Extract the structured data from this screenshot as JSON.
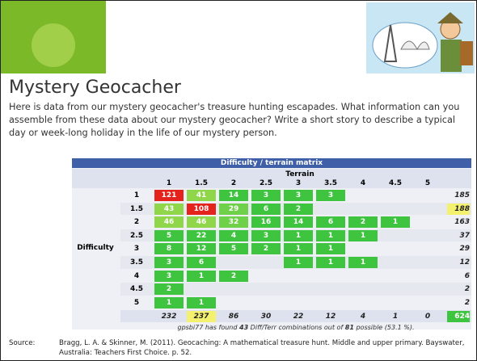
{
  "header": {
    "title": "Mystery Geocacher",
    "text": "Here is data from our mystery geocacher's treasure hunting escapades. What information can you assemble from these data about our mystery geocacher? Write a short story to describe a typical day or week-long holiday in the life of our mystery person."
  },
  "matrix": {
    "title": "Difficulty / terrain matrix",
    "terrain_label": "Terrain",
    "difficulty_label": "Difficulty",
    "terrain": [
      "1",
      "1.5",
      "2",
      "2.5",
      "3",
      "3.5",
      "4",
      "4.5",
      "5"
    ],
    "rows": [
      {
        "difficulty": "1",
        "values": [
          121,
          41,
          14,
          3,
          3,
          3,
          null,
          null,
          null
        ],
        "colors": [
          "#e3231c",
          "#8fd64a",
          "#3fc43f",
          "#3fc43f",
          "#3fc43f",
          "#3fc43f",
          null,
          null,
          null
        ],
        "total": 185,
        "total_color": null
      },
      {
        "difficulty": "1.5",
        "values": [
          43,
          108,
          29,
          6,
          2,
          null,
          null,
          null,
          null
        ],
        "colors": [
          "#8fd64a",
          "#e3231c",
          "#6fd04a",
          "#3fc43f",
          "#3fc43f",
          null,
          null,
          null,
          null
        ],
        "total": 188,
        "total_color": "#f4f070"
      },
      {
        "difficulty": "2",
        "values": [
          46,
          46,
          32,
          16,
          14,
          6,
          2,
          1,
          null
        ],
        "colors": [
          "#8fd64a",
          "#8fd64a",
          "#6fd04a",
          "#3fc43f",
          "#3fc43f",
          "#3fc43f",
          "#3fc43f",
          "#3fc43f",
          null
        ],
        "total": 163,
        "total_color": null
      },
      {
        "difficulty": "2.5",
        "values": [
          5,
          22,
          4,
          3,
          1,
          1,
          1,
          null,
          null
        ],
        "colors": [
          "#3fc43f",
          "#3fc43f",
          "#3fc43f",
          "#3fc43f",
          "#3fc43f",
          "#3fc43f",
          "#3fc43f",
          null,
          null
        ],
        "total": 37,
        "total_color": null
      },
      {
        "difficulty": "3",
        "values": [
          8,
          12,
          5,
          2,
          1,
          1,
          null,
          null,
          null
        ],
        "colors": [
          "#3fc43f",
          "#3fc43f",
          "#3fc43f",
          "#3fc43f",
          "#3fc43f",
          "#3fc43f",
          null,
          null,
          null
        ],
        "total": 29,
        "total_color": null
      },
      {
        "difficulty": "3.5",
        "values": [
          3,
          6,
          null,
          null,
          1,
          1,
          1,
          null,
          null
        ],
        "colors": [
          "#3fc43f",
          "#3fc43f",
          null,
          null,
          "#3fc43f",
          "#3fc43f",
          "#3fc43f",
          null,
          null
        ],
        "total": 12,
        "total_color": null
      },
      {
        "difficulty": "4",
        "values": [
          3,
          1,
          2,
          null,
          null,
          null,
          null,
          null,
          null
        ],
        "colors": [
          "#3fc43f",
          "#3fc43f",
          "#3fc43f",
          null,
          null,
          null,
          null,
          null,
          null
        ],
        "total": 6,
        "total_color": null
      },
      {
        "difficulty": "4.5",
        "values": [
          2,
          null,
          null,
          null,
          null,
          null,
          null,
          null,
          null
        ],
        "colors": [
          "#3fc43f",
          null,
          null,
          null,
          null,
          null,
          null,
          null,
          null
        ],
        "total": 2,
        "total_color": null
      },
      {
        "difficulty": "5",
        "values": [
          1,
          1,
          null,
          null,
          null,
          null,
          null,
          null,
          null
        ],
        "colors": [
          "#3fc43f",
          "#3fc43f",
          null,
          null,
          null,
          null,
          null,
          null,
          null
        ],
        "total": 2,
        "total_color": null
      }
    ],
    "column_totals": [
      232,
      237,
      86,
      30,
      22,
      12,
      4,
      1,
      0
    ],
    "column_total_colors": [
      null,
      "#f4f070",
      null,
      null,
      null,
      null,
      null,
      null,
      null
    ],
    "grand_total": 624,
    "grand_total_color": "#3fc43f",
    "footer": [
      "gpsbi77 has found ",
      "43",
      " Diff/Terr combinations out of ",
      "81",
      " possible (53.1 %)."
    ]
  },
  "source": {
    "label": "Source:",
    "text": "Bragg, L. A. & Skinner, M. (2011). Geocaching: A mathematical treasure hunt. Middle and upper primary. Bayswater, Australia: Teachers First Choice. p. 52."
  }
}
